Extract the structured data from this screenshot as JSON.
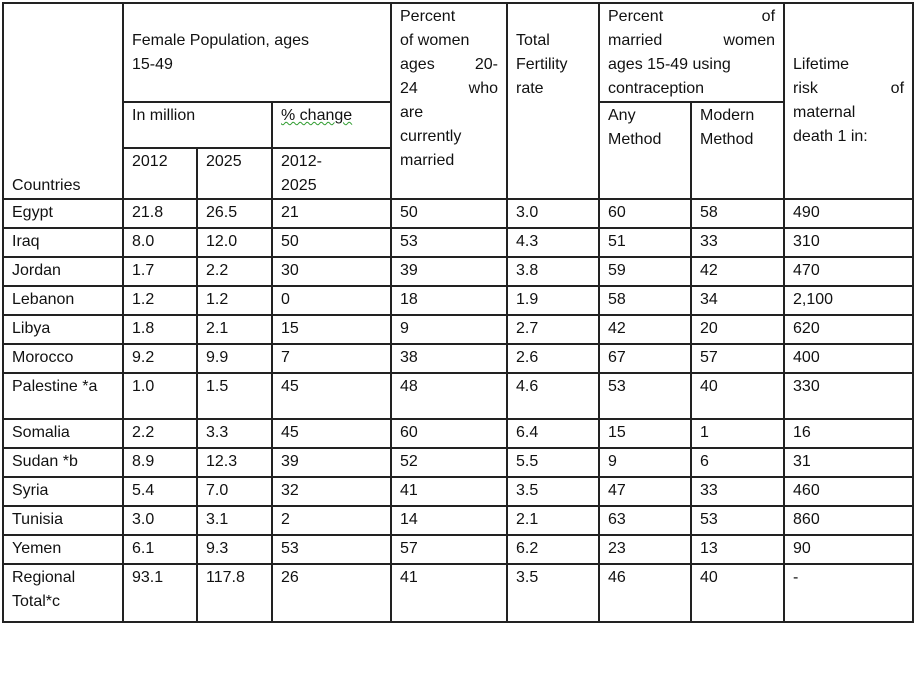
{
  "header": {
    "countries": "Countries",
    "female_population_line1": "Female Population, ages",
    "female_population_line2": "15-49",
    "in_million": "In million",
    "pct_change": "% change",
    "year_2012": "2012",
    "year_2025": "2025",
    "period_line1": "2012-",
    "period_line2": "2025",
    "pct_married_lines": [
      "Percent",
      "of women",
      "ages 20-",
      "24 who",
      "are",
      "currently",
      "married"
    ],
    "total_fertility_lines": [
      "Total",
      "Fertility",
      "rate"
    ],
    "contraception_lines": [
      "Percent of",
      "married women",
      "ages 15-49 using",
      "contraception"
    ],
    "any_method_lines": [
      "Any",
      "Method"
    ],
    "modern_method_lines": [
      "Modern",
      "Method"
    ],
    "lifetime_risk_lines": [
      "Lifetime",
      "risk of",
      "maternal",
      "death 1 in"
    ],
    "lifetime_risk_suffix": ":"
  },
  "rows": [
    {
      "country": "Egypt",
      "pop_2012": "21.8",
      "pop_2025": "26.5",
      "change": "21",
      "married": "50",
      "fertility": "3.0",
      "any": "60",
      "modern": "58",
      "risk": "490"
    },
    {
      "country": "Iraq",
      "pop_2012": "8.0",
      "pop_2025": "12.0",
      "change": "50",
      "married": "53",
      "fertility": "4.3",
      "any": "51",
      "modern": "33",
      "risk": "310"
    },
    {
      "country": "Jordan",
      "pop_2012": "1.7",
      "pop_2025": "2.2",
      "change": "30",
      "married": "39",
      "fertility": "3.8",
      "any": "59",
      "modern": "42",
      "risk": "470"
    },
    {
      "country": "Lebanon",
      "pop_2012": "1.2",
      "pop_2025": "1.2",
      "change": "0",
      "married": "18",
      "fertility": "1.9",
      "any": "58",
      "modern": "34",
      "risk": "2,100"
    },
    {
      "country": "Libya",
      "pop_2012": "1.8",
      "pop_2025": "2.1",
      "change": "15",
      "married": "9",
      "fertility": "2.7",
      "any": "42",
      "modern": "20",
      "risk": "620"
    },
    {
      "country": "Morocco",
      "pop_2012": "9.2",
      "pop_2025": "9.9",
      "change": "7",
      "married": "38",
      "fertility": "2.6",
      "any": "67",
      "modern": "57",
      "risk": "400"
    },
    {
      "country": "Palestine *a",
      "pop_2012": "1.0",
      "pop_2025": "1.5",
      "change": "45",
      "married": "48",
      "fertility": "4.6",
      "any": "53",
      "modern": "40",
      "risk": "330"
    },
    {
      "country": "Somalia",
      "pop_2012": "2.2",
      "pop_2025": "3.3",
      "change": "45",
      "married": "60",
      "fertility": "6.4",
      "any": "15",
      "modern": "1",
      "risk": "16"
    },
    {
      "country": "Sudan *b",
      "pop_2012": "8.9",
      "pop_2025": "12.3",
      "change": "39",
      "married": "52",
      "fertility": "5.5",
      "any": "9",
      "modern": "6",
      "risk": "31"
    },
    {
      "country": "Syria",
      "pop_2012": "5.4",
      "pop_2025": "7.0",
      "change": "32",
      "married": "41",
      "fertility": "3.5",
      "any": "47",
      "modern": "33",
      "risk": "460"
    },
    {
      "country": "Tunisia",
      "pop_2012": "3.0",
      "pop_2025": "3.1",
      "change": "2",
      "married": "14",
      "fertility": "2.1",
      "any": "63",
      "modern": "53",
      "risk": "860"
    },
    {
      "country": "Yemen",
      "pop_2012": "6.1",
      "pop_2025": "9.3",
      "change": "53",
      "married": "57",
      "fertility": "6.2",
      "any": "23",
      "modern": "13",
      "risk": "90"
    },
    {
      "country": "Regional Total*c",
      "pop_2012": "93.1",
      "pop_2025": "117.8",
      "change": "26",
      "married": "41",
      "fertility": "3.5",
      "any": "46",
      "modern": "40",
      "risk": "-"
    }
  ]
}
